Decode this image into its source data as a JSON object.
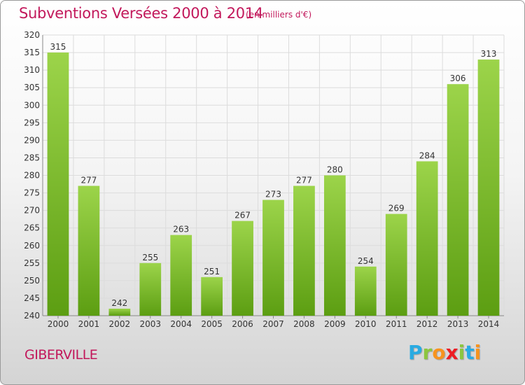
{
  "header": {
    "title": "Subventions Versées 2000 à 2014",
    "unit": "(en milliers d'€)"
  },
  "footer": {
    "commune": "GIBERVILLE",
    "logo_letters": [
      "P",
      "r",
      "o",
      "x",
      "i",
      "t",
      "i"
    ],
    "logo_colors": [
      "#29abe2",
      "#8cc63f",
      "#f7931e",
      "#ed1c24",
      "#8cc63f",
      "#29abe2",
      "#f7931e"
    ]
  },
  "chart_data": {
    "type": "bar",
    "title": "Subventions Versées 2000 à 2014",
    "subtitle": "(en milliers d'€)",
    "categories": [
      "2000",
      "2001",
      "2002",
      "2003",
      "2004",
      "2005",
      "2006",
      "2007",
      "2008",
      "2009",
      "2010",
      "2011",
      "2012",
      "2013",
      "2014"
    ],
    "values": [
      315,
      277,
      242,
      255,
      263,
      251,
      267,
      273,
      277,
      280,
      254,
      269,
      284,
      306,
      313
    ],
    "ylim": [
      240,
      320
    ],
    "yticks": [
      240,
      245,
      250,
      255,
      260,
      265,
      270,
      275,
      280,
      285,
      290,
      295,
      300,
      305,
      310,
      315,
      320
    ],
    "grid": true,
    "bar_color": "#7cc22a"
  }
}
